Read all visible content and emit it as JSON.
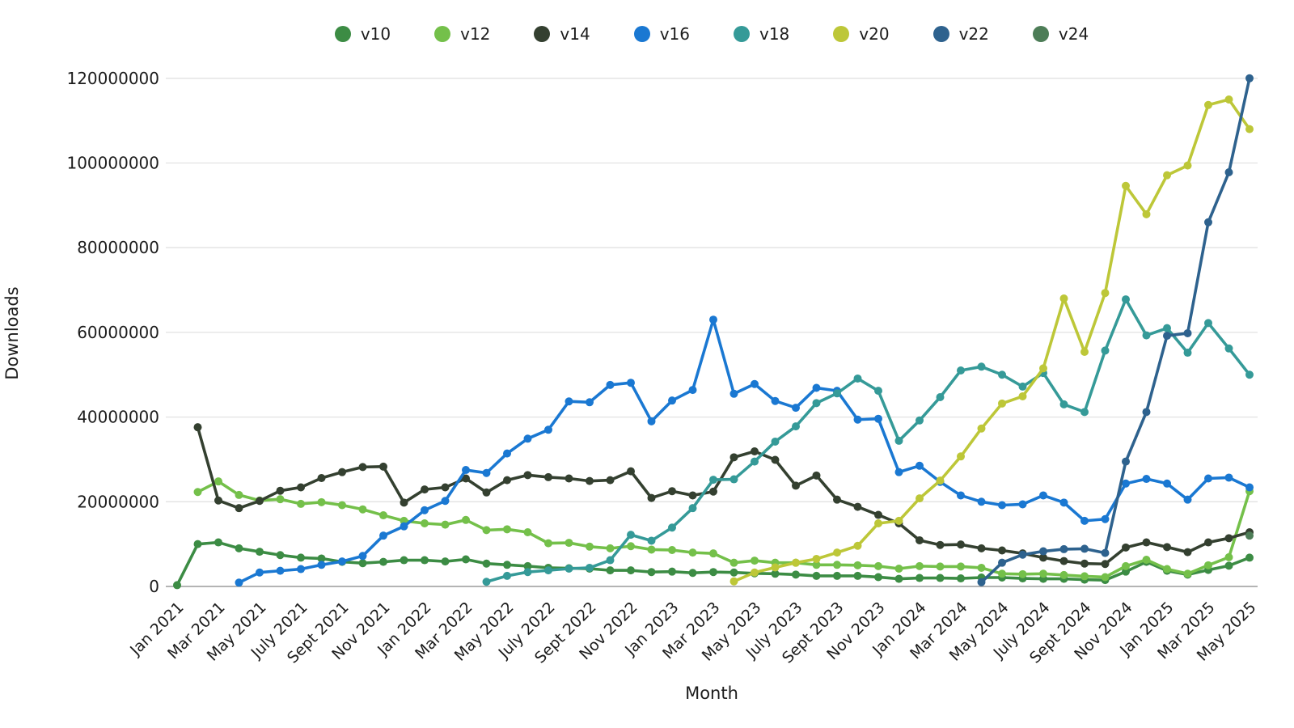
{
  "chart_data": {
    "type": "line",
    "title": "",
    "xlabel": "Month",
    "ylabel": "Downloads",
    "value_unit": "millions of downloads per month",
    "ylim_millions": [
      0,
      120
    ],
    "ytick_step_millions": 20,
    "ytick_labels": [
      "0",
      "20000000",
      "40000000",
      "60000000",
      "80000000",
      "100000000",
      "120000000"
    ],
    "grid": "horizontal-only",
    "legend_position": "top-center",
    "xtick_every": 2,
    "months": [
      "Jan 2021",
      "Feb 2021",
      "Mar 2021",
      "Apr 2021",
      "May 2021",
      "June 2021",
      "July 2021",
      "Aug 2021",
      "Sept 2021",
      "Oct 2021",
      "Nov 2021",
      "Dec 2021",
      "Jan 2022",
      "Feb 2022",
      "Mar 2022",
      "Apr 2022",
      "May 2022",
      "June 2022",
      "July 2022",
      "Aug 2022",
      "Sept 2022",
      "Oct 2022",
      "Nov 2022",
      "Dec 2022",
      "Jan 2023",
      "Feb 2023",
      "Mar 2023",
      "Apr 2023",
      "May 2023",
      "June 2023",
      "July 2023",
      "Aug 2023",
      "Sept 2023",
      "Oct 2023",
      "Nov 2023",
      "Dec 2023",
      "Jan 2024",
      "Feb 2024",
      "Mar 2024",
      "Apr 2024",
      "May 2024",
      "June 2024",
      "July 2024",
      "Aug 2024",
      "Sept 2024",
      "Oct 2024",
      "Nov 2024",
      "Dec 2024",
      "Jan 2025",
      "Feb 2025",
      "Mar 2025",
      "Apr 2025",
      "May 2025"
    ],
    "series": [
      {
        "name": "v10",
        "color": "#3c8c44",
        "values_millions": [
          0.3,
          10,
          10.4,
          9,
          8.2,
          7.4,
          6.8,
          6.6,
          5.8,
          5.5,
          5.8,
          6.2,
          6.2,
          5.9,
          6.4,
          5.4,
          5.1,
          4.8,
          4.4,
          4.3,
          4.2,
          3.8,
          3.8,
          3.4,
          3.5,
          3.2,
          3.4,
          3.3,
          3.1,
          3,
          2.8,
          2.5,
          2.5,
          2.5,
          2.2,
          1.8,
          2,
          2,
          1.9,
          2.1,
          2.1,
          1.9,
          1.8,
          1.8,
          1.6,
          1.5,
          3.5,
          5.8,
          3.7,
          2.8,
          3.9,
          4.9,
          6.8
        ]
      },
      {
        "name": "v12",
        "color": "#74c04a",
        "values_millions": [
          null,
          22.3,
          24.8,
          21.6,
          20.3,
          20.6,
          19.5,
          19.9,
          19.2,
          18.2,
          16.8,
          15.5,
          14.9,
          14.6,
          15.7,
          13.3,
          13.5,
          12.8,
          10.2,
          10.3,
          9.4,
          9,
          9.5,
          8.7,
          8.6,
          8,
          7.8,
          5.6,
          6.1,
          5.6,
          5.6,
          5.1,
          5.1,
          5,
          4.8,
          4.2,
          4.8,
          4.7,
          4.7,
          4.4,
          3,
          2.9,
          3,
          2.7,
          2.4,
          2.2,
          4.8,
          6.3,
          4.1,
          3,
          5,
          6.9,
          22.5
        ]
      },
      {
        "name": "v14",
        "color": "#344030",
        "values_millions": [
          null,
          37.6,
          20.3,
          18.5,
          20.2,
          22.6,
          23.4,
          25.6,
          27,
          28.2,
          28.3,
          19.8,
          22.9,
          23.4,
          25.5,
          22.2,
          25.1,
          26.3,
          25.8,
          25.5,
          24.9,
          25.1,
          27.2,
          20.9,
          22.5,
          21.5,
          22.4,
          30.5,
          31.9,
          29.9,
          23.8,
          26.2,
          20.5,
          18.8,
          16.9,
          14.9,
          10.9,
          9.8,
          9.9,
          9,
          8.5,
          7.8,
          6.8,
          6,
          5.4,
          5.3,
          9.2,
          10.4,
          9.3,
          8.1,
          10.4,
          11.4,
          12.8
        ]
      },
      {
        "name": "v16",
        "color": "#1a78d2",
        "values_millions": [
          null,
          null,
          null,
          0.9,
          3.3,
          3.7,
          4.1,
          5.1,
          5.9,
          7.2,
          12,
          14.2,
          18,
          20.2,
          27.5,
          26.8,
          31.4,
          34.9,
          37,
          43.7,
          43.5,
          47.6,
          48.1,
          39,
          43.9,
          46.4,
          63,
          45.5,
          47.8,
          43.8,
          42.2,
          46.9,
          46.2,
          39.4,
          39.6,
          27,
          28.5,
          24.7,
          21.5,
          20,
          19.2,
          19.4,
          21.5,
          19.8,
          15.5,
          15.9,
          24.3,
          25.4,
          24.3,
          20.5,
          25.5,
          25.7,
          23.4
        ]
      },
      {
        "name": "v18",
        "color": "#359a98",
        "values_millions": [
          null,
          null,
          null,
          null,
          null,
          null,
          null,
          null,
          null,
          null,
          null,
          null,
          null,
          null,
          null,
          1.1,
          2.5,
          3.4,
          3.8,
          4.2,
          4.4,
          6.2,
          12.2,
          10.8,
          13.9,
          18.5,
          25.2,
          25.3,
          29.5,
          34.2,
          37.8,
          43.3,
          45.6,
          49.1,
          46.2,
          34.4,
          39.2,
          44.7,
          51,
          51.9,
          50,
          47.2,
          50.4,
          43,
          41.2,
          55.7,
          67.8,
          59.3,
          61,
          55.2,
          62.2,
          56.2,
          50
        ]
      },
      {
        "name": "v20",
        "color": "#bdc738",
        "values_millions": [
          null,
          null,
          null,
          null,
          null,
          null,
          null,
          null,
          null,
          null,
          null,
          null,
          null,
          null,
          null,
          null,
          null,
          null,
          null,
          null,
          null,
          null,
          null,
          null,
          null,
          null,
          null,
          1.2,
          3.3,
          4.5,
          5.6,
          6.5,
          8,
          9.6,
          14.9,
          15.5,
          20.8,
          25,
          30.7,
          37.3,
          43.2,
          44.9,
          51.5,
          68,
          55.4,
          69.3,
          94.6,
          87.9,
          97.1,
          99.4,
          113.7,
          115,
          108
        ]
      },
      {
        "name": "v22",
        "color": "#2e628e",
        "values_millions": [
          null,
          null,
          null,
          null,
          null,
          null,
          null,
          null,
          null,
          null,
          null,
          null,
          null,
          null,
          null,
          null,
          null,
          null,
          null,
          null,
          null,
          null,
          null,
          null,
          null,
          null,
          null,
          null,
          null,
          null,
          null,
          null,
          null,
          null,
          null,
          null,
          null,
          null,
          null,
          1,
          5.6,
          7.5,
          8.3,
          8.8,
          8.9,
          7.9,
          29.5,
          41.2,
          59.2,
          59.8,
          86,
          97.8,
          120
        ]
      },
      {
        "name": "v24",
        "color": "#4d7d57",
        "values_millions": [
          null,
          null,
          null,
          null,
          null,
          null,
          null,
          null,
          null,
          null,
          null,
          null,
          null,
          null,
          null,
          null,
          null,
          null,
          null,
          null,
          null,
          null,
          null,
          null,
          null,
          null,
          null,
          null,
          null,
          null,
          null,
          null,
          null,
          null,
          null,
          null,
          null,
          null,
          null,
          null,
          null,
          null,
          null,
          null,
          null,
          null,
          null,
          null,
          null,
          null,
          null,
          null,
          12
        ]
      }
    ]
  },
  "layout_colors": {
    "background": "#ffffff",
    "gridline": "#e2e2e2",
    "zero_line": "#9b9b9b",
    "tick_text": "#1c1c1c"
  }
}
